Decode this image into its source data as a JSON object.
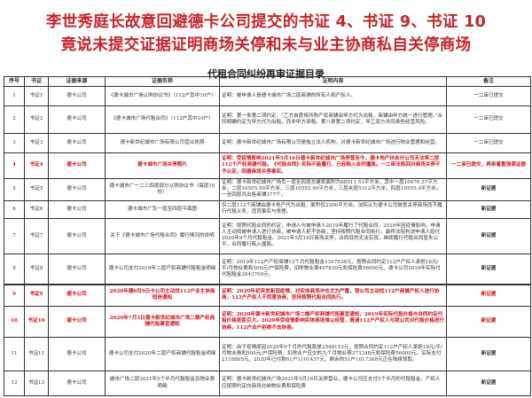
{
  "headline": {
    "line1": "李世秀庭长故意回避德卡公司提交的书证 4、书证 9、书证 10",
    "line2": "竟说未提交证据证明商场关停和未与业主协商私自关停商场"
  },
  "table_title": "代租合同纠纷再审证据目录",
  "columns": [
    "序号",
    "书证",
    "证据来源",
    "证据名称",
    "证明内容",
    "备注"
  ],
  "rows": [
    {
      "no": "1",
      "doc": "书证1",
      "source": "德卡公司",
      "name": "《德卡城市广场认购协议书》（112户其中10户）",
      "content": "证明：被申请人是德卡城市广场二层商铺的所有人和产权人。",
      "note": "一二审已提交",
      "red": false
    },
    {
      "no": "2",
      "doc": "书证2",
      "source": "德卡公司",
      "name": "《德卡城市广场代租合同》（112户其中10户）",
      "content": "证明：第一条第二项约定，“乙方自愿将所购产权商铺由甲方代为出租，商铺由甲方统一进行管理。”合同明确约定为甲方代为出租，而非甲方承租。第八条第二项约定，甲乙双方共同承担经营风险。",
      "note": "一二审已提交",
      "red": false
    },
    {
      "no": "3",
      "doc": "书证3",
      "source": "德卡公司",
      "name": "德卡新世纪城市广场有限公司营业执照",
      "content": "证明：德卡新世纪城市广场有限公司是独立法人机构，对德卡新世纪城市广场进行物业管理和经营。",
      "note": "一二审已提交",
      "red": false
    },
    {
      "no": "4",
      "doc": "书证4",
      "source": "德卡公司",
      "name": "德卡城市广场关停照片",
      "content": "证明：受疫情影响2021年5月16日德卡新世纪城市广场停营至今，德卡地产扶余分公司无法将二层112个产权商铺代租。《代租合同》实际不能履行，已经陷入合同僵局。一二审法院回对商场关停不予认定，回避商场关停事实。",
      "note": "一二审已提交，再审着重强调证据",
      "red": true
    },
    {
      "no": "5",
      "doc": "书证5",
      "source": "德卡公司",
      "name": "德卡城市广一二三四层部分认购协议书（每层10份）",
      "content": "证明：德卡新世纪城市广场负一层至四层总建筑面积为68511.53平方米，其中一层10970.57平方米，二层10555.99平方米，三层10555.99平方米，三层夹层5312平方米，四层10555.0平方米。一至四层共出售商铺377个，",
      "note": "新证据",
      "red": false
    },
    {
      "no": "6",
      "doc": "书证6",
      "source": "德卡公司",
      "name": "德卡城市广负一层至四层平面图",
      "content": "仅二层112个商铺由德卡地产代为出租，面积仅2300平方米。法院认为德卡公司故意关停商场而不履行代租义务，违背事实与常理。",
      "note": "新证据",
      "red": false
    },
    {
      "no": "7",
      "doc": "书证7",
      "source": "德卡公司",
      "name": "关于《德卡城市广场代租合同》履行情况的说明",
      "content": "证明：按照代租合同的约定，申请人与被申请人2019年履行了代租合同。2020年因疫情影响，申请人主动找被申请人进行协商，被申请人拒不协商，坚持按照代租合同执行。最终法院判决申请人给付2020年9个月代租租金。2021年5月16日商场关停，合同目的无法实现，继续履行代租合同显失公平，合同履行陷入僵局。",
      "note": "新证据",
      "red": false
    },
    {
      "no": "8",
      "doc": "书证8",
      "source": "德卡公司",
      "name": "德卡公司支付2019年二层产权商铺代租租金明细",
      "content": "证明：2019年112户产权商铺12个月代租租金3397538元，按照合同约定112户产权人承担18元/平/月物业费和500元/户保险费，扣除物业费497830元和保险费56000元，德卡公司2019年实际付代租租金2843709元。",
      "note": "新证据",
      "red": false
    }
  ],
  "rows2": [
    {
      "no": "9",
      "doc": "书证9",
      "source": "德卡公司",
      "name": "2020年德6月9日卡公司主动找112户业主协商短信通知",
      "content": "证明：2020年初突发新冠疫情，对实体商场冲击尤为严重，我公司主动找112户商铺产权人进行协商，112户产权人不同意协商，坚持按照代租合同执行。",
      "note": "新证据",
      "red": true
    },
    {
      "no": "10",
      "doc": "书证10",
      "source": "德卡公司",
      "name": "2020年7月3日德卡新世纪城市广场二楼产权商铺代租事宜通知",
      "content": "证明：2020年德卡新世纪城市广场二楼产权商铺代租事宜通知，2019年实际代租价格与合同约定代租价格差距巨大，2020年受疫情影响实体商场难以经营，邀请112户产权人与我公司对代租价格进行协商，112户业户拒绝不去协商。",
      "note": "新证据",
      "red": true
    },
    {
      "no": "11",
      "doc": "书证11",
      "source": "德卡公司",
      "name": "德卡公司支付2020年二层产权商铺代租租金明细",
      "content": "证明：由于疫情原因2020年9个月的代租款是2548153元，按照合同约定112户产权人承担18元/平/月物业费和500元/户保险费，扣除业户应交的九个月物业费373348元和保险费56000元，实际支付2118805元，2020年已付款61户1101437元，剩余的51户1017368元正在陆续领取。",
      "note": "新证据",
      "red": false
    },
    {
      "no": "12",
      "doc": "书证12",
      "source": "德卡公司",
      "name": "城市广场二层2021年5个半月代租租金及物业费明细",
      "content": "证明：德卡新世纪城市广场2021年5月16日关停营业，德卡公司应支付5个半月的代租租金，产权人应按照约定向商场交纳物业费和保险费",
      "note": "新证据",
      "red": false
    }
  ]
}
